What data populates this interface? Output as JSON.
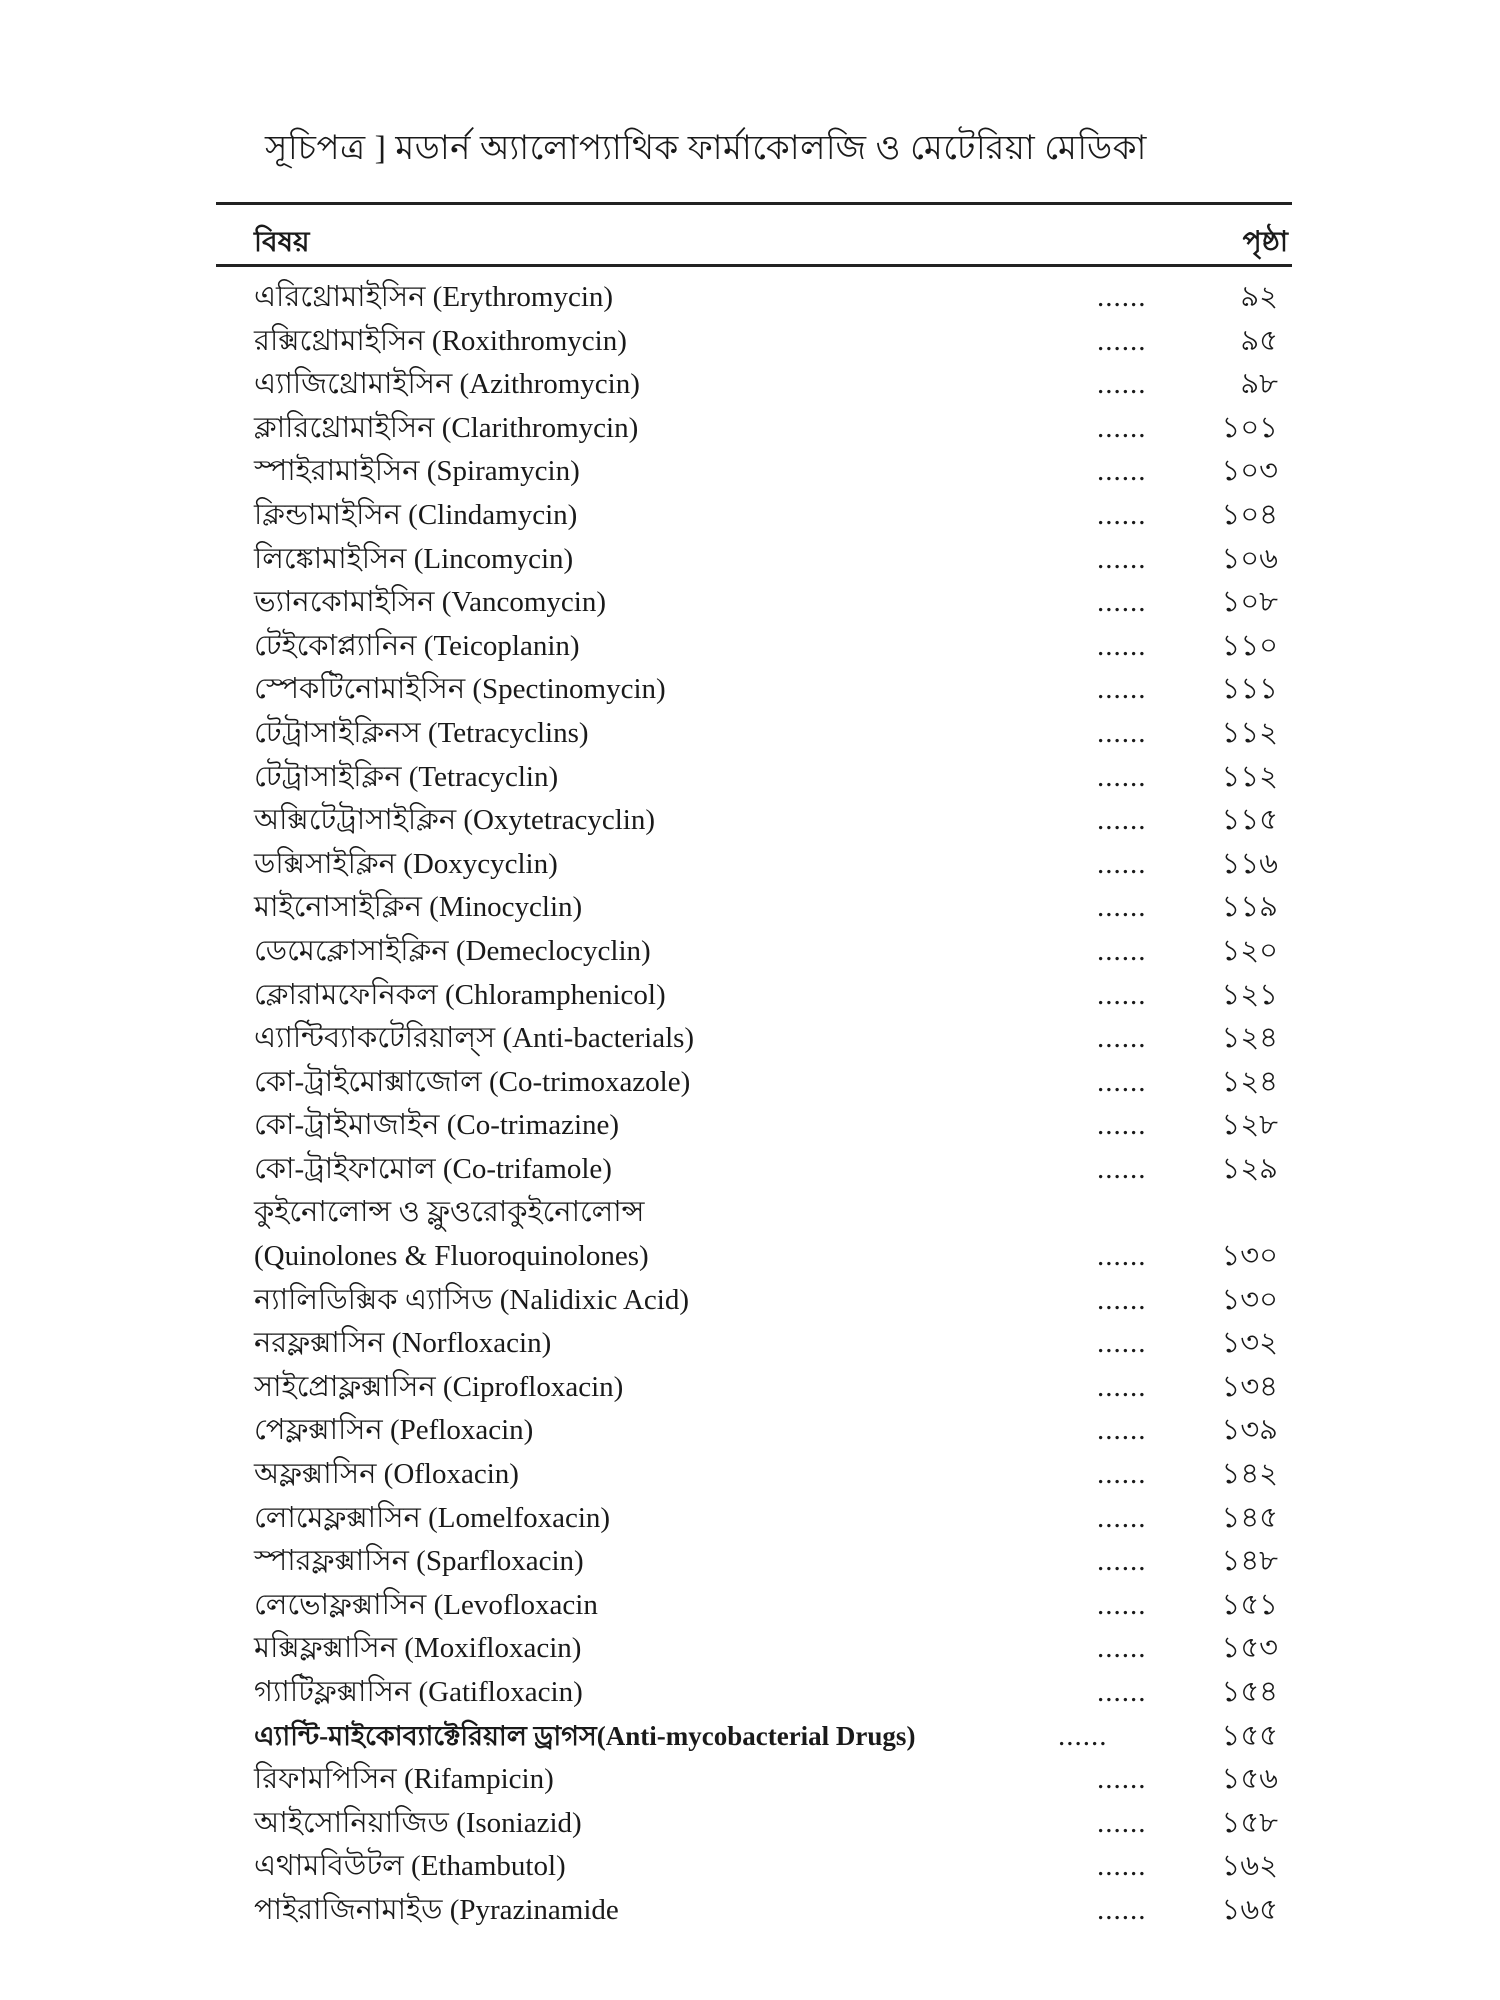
{
  "header": {
    "title": "সূচিপত্র ]  মডার্ন অ্যালোপ্যাথিক ফার্মাকোলজি ও মেটেরিয়া মেডিকা",
    "col_subject": "বিষয়",
    "col_page": "পৃষ্ঠা"
  },
  "entries": [
    {
      "label": "এরিথ্রোমাইসিন (Erythromycin)",
      "dots": "......",
      "page": "৯২"
    },
    {
      "label": "রক্সিথ্রোমাইসিন (Roxithromycin)",
      "dots": "......",
      "page": "৯৫"
    },
    {
      "label": "এ্যাজিথ্রোমাইসিন (Azithromycin)",
      "dots": "......",
      "page": "৯৮"
    },
    {
      "label": "ক্লারিথ্রোমাইসিন (Clarithromycin)",
      "dots": "......",
      "page": "১০১"
    },
    {
      "label": "স্পাইরামাইসিন (Spiramycin)",
      "dots": "......",
      "page": "১০৩"
    },
    {
      "label": "ক্লিন্ডামাইসিন (Clindamycin)",
      "dots": "......",
      "page": "১০৪"
    },
    {
      "label": "লিঙ্কোমাইসিন (Lincomycin)",
      "dots": "......",
      "page": "১০৬"
    },
    {
      "label": "ভ্যানকোমাইসিন (Vancomycin)",
      "dots": "......",
      "page": "১০৮"
    },
    {
      "label": "টেইকোপ্ল্যানিন (Teicoplanin)",
      "dots": "......",
      "page": "১১০"
    },
    {
      "label": "স্পেকটিনোমাইসিন (Spectinomycin)",
      "dots": "......",
      "page": "১১১"
    },
    {
      "label": "টেট্রাসাইক্লিনস (Tetracyclins)",
      "dots": "......",
      "page": "১১২"
    },
    {
      "label": "টেট্রাসাইক্লিন (Tetracyclin)",
      "dots": "......",
      "page": "১১২"
    },
    {
      "label": "অক্সিটেট্রাসাইক্লিন (Oxytetracyclin)",
      "dots": "......",
      "page": "১১৫"
    },
    {
      "label": "ডক্সিসাইক্লিন (Doxycyclin)",
      "dots": "......",
      "page": "১১৬"
    },
    {
      "label": "মাইনোসাইক্লিন (Minocyclin)",
      "dots": "......",
      "page": "১১৯"
    },
    {
      "label": "ডেমেক্লোসাইক্লিন (Demeclocyclin)",
      "dots": "......",
      "page": "১২০"
    },
    {
      "label": "ক্লোরামফেনিকল (Chloramphenicol)",
      "dots": "......",
      "page": "১২১"
    },
    {
      "label": "এ্যান্টিব্যাকটেরিয়াল্‌স (Anti-bacterials)",
      "dots": "......",
      "page": "১২৪"
    },
    {
      "label": "কো-ট্রাইমোক্সাজোল (Co-trimoxazole)",
      "dots": "......",
      "page": "১২৪"
    },
    {
      "label": "কো-ট্রাইমাজাইন (Co-trimazine)",
      "dots": "......",
      "page": "১২৮"
    },
    {
      "label": "কো-ট্রাইফামোল (Co-trifamole)",
      "dots": "......",
      "page": "১২৯"
    },
    {
      "label": "কুইনোলোন্স ও ফ্লুওরোকুইনোলোন্স",
      "dots": "",
      "page": ""
    },
    {
      "label": "(Quinolones & Fluoroquinolones)",
      "dots": "......",
      "page": "১৩০"
    },
    {
      "label": "ন্যালিডিক্সিক এ্যাসিড (Nalidixic Acid)",
      "dots": "......",
      "page": "১৩০"
    },
    {
      "label": "নরফ্লক্সাসিন (Norfloxacin)",
      "dots": "......",
      "page": "১৩২"
    },
    {
      "label": "সাইপ্রোফ্লক্সাসিন (Ciprofloxacin)",
      "dots": "......",
      "page": "১৩৪"
    },
    {
      "label": "পেফ্লক্সাসিন (Pefloxacin)",
      "dots": "......",
      "page": "১৩৯"
    },
    {
      "label": "অফ্লক্সাসিন (Ofloxacin)",
      "dots": "......",
      "page": "১৪২"
    },
    {
      "label": "লোমেফ্লক্সাসিন (Lomelfoxacin)",
      "dots": "......",
      "page": "১৪৫"
    },
    {
      "label": "স্পারফ্লক্সাসিন (Sparfloxacin)",
      "dots": "......",
      "page": "১৪৮"
    },
    {
      "label": "লেভোফ্লক্সাসিন (Levofloxacin",
      "dots": "......",
      "page": "১৫১"
    },
    {
      "label": "মক্সিফ্লক্সাসিন (Moxifloxacin)",
      "dots": "......",
      "page": "১৫৩"
    },
    {
      "label": "গ্যাটিফ্লক্সাসিন (Gatifloxacin)",
      "dots": "......",
      "page": "১৫৪"
    },
    {
      "label": "এ্যান্টি-মাইকোব্যাক্টেরিয়াল ড্রাগস(Anti-mycobacterial Drugs)",
      "dots": "......",
      "page": "১৫৫",
      "bold": true
    },
    {
      "label": "রিফামপিসিন (Rifampicin)",
      "dots": "......",
      "page": "১৫৬"
    },
    {
      "label": "আইসোনিয়াজিড (Isoniazid)",
      "dots": "......",
      "page": "১৫৮"
    },
    {
      "label": "এথামবিউটল (Ethambutol)",
      "dots": "......",
      "page": "১৬২"
    },
    {
      "label": "পাইরাজিনামাইড (Pyrazinamide",
      "dots": "......",
      "page": "১৬৫"
    }
  ]
}
